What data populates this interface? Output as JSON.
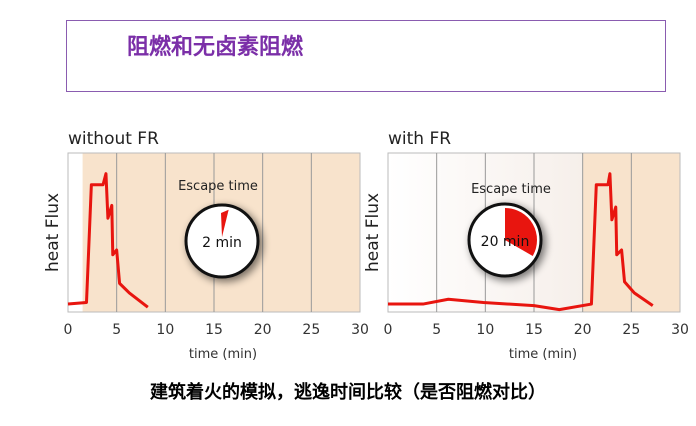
{
  "slide_title": "阻燃和无卤素阻燃",
  "caption": "建筑着火的模拟，逃逸时间比较（是否阻燃对比）",
  "colors": {
    "line": "#e8150f",
    "shade": "#f8e3cc",
    "title": "#7b2fa8"
  },
  "chart_data": [
    {
      "type": "line",
      "title": "without FR",
      "xlabel": "time (min)",
      "ylabel": "heat Flux",
      "xlim": [
        0,
        30
      ],
      "xticks": [
        0,
        5,
        10,
        15,
        20,
        25,
        30
      ],
      "grid": "vertical",
      "annotation": {
        "label": "Escape time",
        "value": "2 min",
        "minutes": 2
      },
      "series": [
        {
          "x": [
            0,
            1.9,
            2.4,
            3.6,
            3.9,
            4.1,
            4.5,
            4.6,
            5.0,
            5.3,
            6.3,
            8.2
          ],
          "y": [
            5,
            6,
            80,
            80,
            87,
            59,
            67,
            36,
            39,
            18,
            12,
            3
          ]
        }
      ]
    },
    {
      "type": "line",
      "title": "with FR",
      "xlabel": "time (min)",
      "ylabel": "heat Flux",
      "xlim": [
        0,
        30
      ],
      "xticks": [
        0,
        5,
        10,
        15,
        20,
        25,
        30
      ],
      "grid": "vertical",
      "annotation": {
        "label": "Escape time",
        "value": "20 min",
        "minutes": 20
      },
      "series": [
        {
          "x": [
            0,
            3.6,
            6.2,
            9.8,
            15,
            17.6,
            20.9,
            21.4,
            22.6,
            22.8,
            23,
            23.4,
            23.5,
            24,
            24.3,
            25.3,
            27.2
          ],
          "y": [
            5,
            5,
            8,
            6,
            4,
            1.5,
            5,
            80,
            80,
            87,
            58,
            66,
            36,
            39,
            19,
            12,
            4
          ]
        }
      ]
    }
  ]
}
